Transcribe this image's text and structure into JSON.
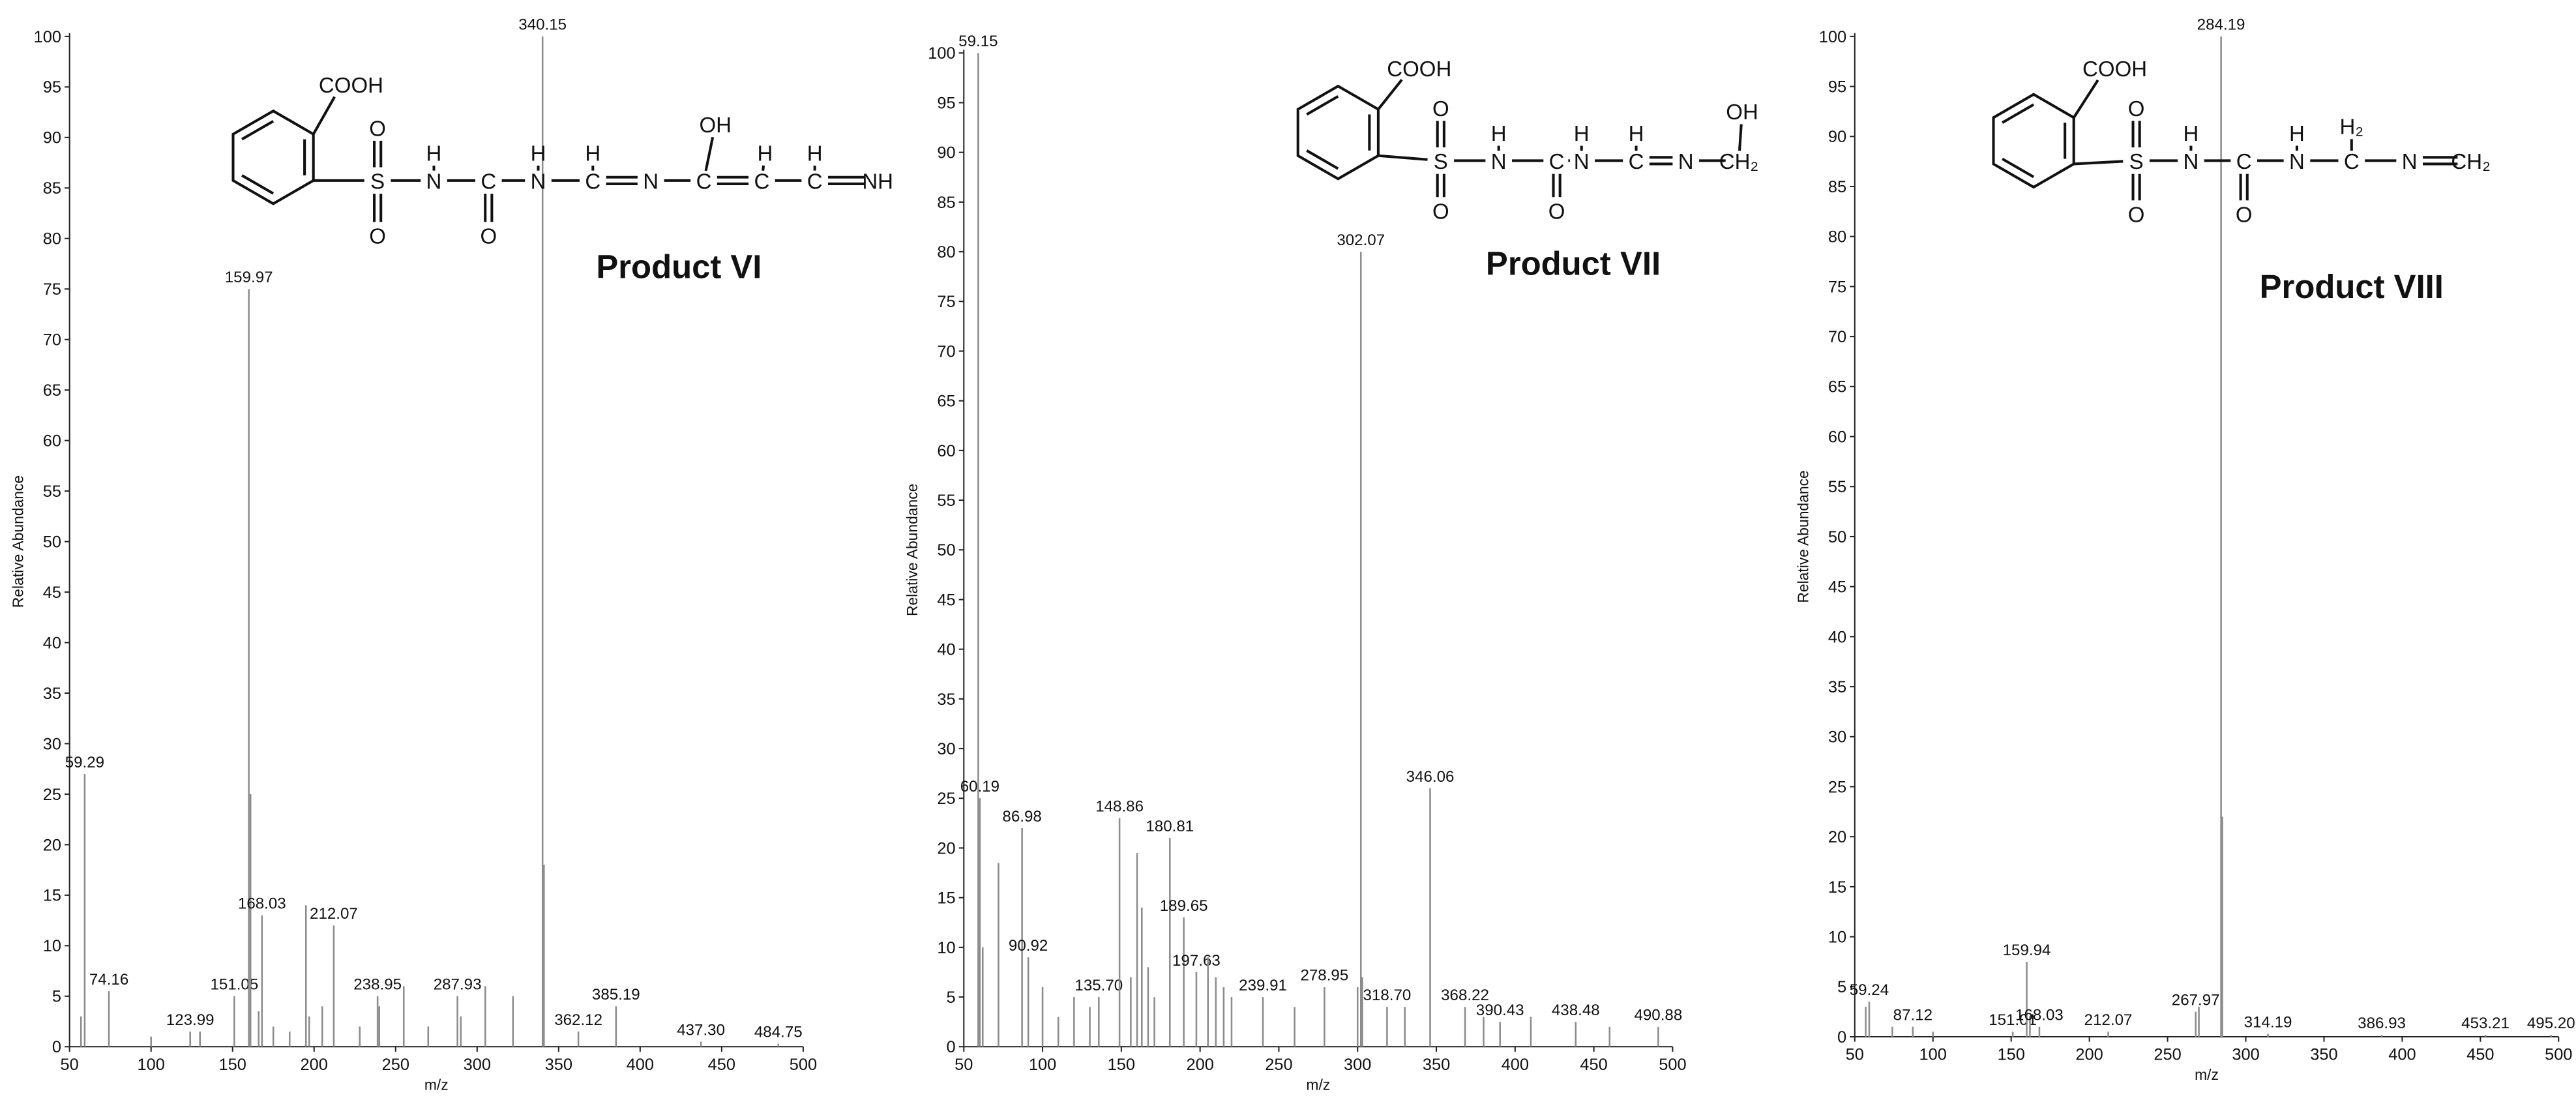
{
  "chart_data": [
    {
      "type": "bar",
      "product_label": "Product VI",
      "structure_labels": [
        "COOH",
        "S",
        "O",
        "O",
        "H",
        "N",
        "C",
        "O",
        "H",
        "N",
        "H",
        "C",
        "N",
        "OH",
        "C",
        "H",
        "C",
        "H",
        "C",
        "NH"
      ],
      "xlabel": "m/z",
      "ylabel": "Relative Abundance",
      "color": "#8c8c8c",
      "x": [
        57,
        59.29,
        74.16,
        100,
        123.99,
        130,
        151.05,
        159.97,
        161,
        166,
        168.03,
        175,
        185,
        195,
        197,
        205,
        212.07,
        228,
        238.95,
        240,
        255,
        270,
        287.93,
        290,
        305,
        322,
        340.15,
        341,
        362.12,
        385.19,
        437.3,
        484.75
      ],
      "values": [
        3,
        27,
        5.5,
        1,
        1.5,
        1.5,
        5,
        75,
        25,
        3.5,
        13,
        2,
        1.5,
        14,
        3,
        4,
        12,
        2,
        5,
        4,
        6,
        2,
        5,
        3,
        6,
        5,
        100,
        18,
        1.5,
        4,
        0.5,
        0.3
      ],
      "x_labels": [
        null,
        "59.29",
        "74.16",
        null,
        "123.99",
        null,
        "151.05",
        "159.97",
        null,
        null,
        "168.03",
        null,
        null,
        null,
        null,
        null,
        "212.07",
        null,
        "238.95",
        null,
        null,
        null,
        "287.93",
        null,
        null,
        null,
        "340.15",
        null,
        "362.12",
        "385.19",
        "437.30",
        "484.75"
      ],
      "xlim": [
        50,
        500
      ],
      "ylim": [
        0,
        100
      ],
      "xticks": [
        50,
        100,
        150,
        200,
        250,
        300,
        350,
        400,
        450,
        500
      ],
      "yticks": [
        0,
        5,
        10,
        15,
        20,
        25,
        30,
        35,
        40,
        45,
        50,
        55,
        60,
        65,
        70,
        75,
        80,
        85,
        90,
        95,
        100
      ]
    },
    {
      "type": "bar",
      "product_label": "Product VII",
      "structure_labels": [
        "COOH",
        "S",
        "O",
        "O",
        "H",
        "N",
        "C",
        "O",
        "H",
        "N",
        "H",
        "C",
        "N",
        "OH",
        "CH₂"
      ],
      "xlabel": "m/z",
      "ylabel": "Relative Abundance",
      "color": "#8c8c8c",
      "x": [
        59.15,
        60.19,
        62,
        72,
        86.98,
        90.92,
        100,
        110,
        120,
        130,
        135.7,
        148.86,
        156,
        160,
        163,
        167,
        171,
        180.81,
        189.65,
        197.63,
        205,
        210,
        215,
        220,
        239.91,
        260,
        278.95,
        300,
        302.07,
        303,
        318.7,
        330,
        346.06,
        368.22,
        380,
        390.43,
        410,
        438.48,
        460,
        490.88
      ],
      "values": [
        100,
        25,
        10,
        18.5,
        22,
        9,
        6,
        3,
        5,
        4,
        5,
        23,
        7,
        19.5,
        14,
        8,
        5,
        21,
        13,
        7.5,
        9,
        7,
        6,
        5,
        5,
        4,
        6,
        6,
        80,
        7,
        4,
        4,
        26,
        4,
        3,
        2.5,
        3,
        2.5,
        2,
        2
      ],
      "x_labels": [
        "59.15",
        "60.19",
        null,
        null,
        "86.98",
        "90.92",
        null,
        null,
        null,
        null,
        "135.70",
        "148.86",
        null,
        null,
        null,
        null,
        null,
        "180.81",
        "189.65",
        "197.63",
        null,
        null,
        null,
        null,
        "239.91",
        null,
        "278.95",
        null,
        "302.07",
        null,
        "318.70",
        null,
        "346.06",
        "368.22",
        null,
        "390.43",
        null,
        "438.48",
        null,
        "490.88"
      ],
      "xlim": [
        50,
        500
      ],
      "ylim": [
        0,
        100
      ],
      "xticks": [
        50,
        100,
        150,
        200,
        250,
        300,
        350,
        400,
        450,
        500
      ],
      "yticks": [
        0,
        5,
        10,
        15,
        20,
        25,
        30,
        35,
        40,
        45,
        50,
        55,
        60,
        65,
        70,
        75,
        80,
        85,
        90,
        95,
        100
      ]
    },
    {
      "type": "bar",
      "product_label": "Product VIII",
      "structure_labels": [
        "COOH",
        "S",
        "O",
        "O",
        "H",
        "N",
        "C",
        "O",
        "H",
        "N",
        "H₂",
        "C",
        "N",
        "CH₂"
      ],
      "xlabel": "m/z",
      "ylabel": "Relative Abundance",
      "color": "#8c8c8c",
      "x": [
        57,
        59.24,
        74,
        87.12,
        100,
        151.01,
        159.94,
        162,
        168.03,
        212.07,
        267.97,
        270,
        284.19,
        285,
        314.19,
        386.93,
        453.21,
        495.2
      ],
      "values": [
        3,
        3.5,
        1,
        1,
        0.5,
        0.5,
        7.5,
        2,
        1,
        0.5,
        2.5,
        3,
        100,
        22,
        0.3,
        0.2,
        0.2,
        0.2
      ],
      "x_labels": [
        null,
        "59.24",
        null,
        "87.12",
        null,
        "151.01",
        "159.94",
        null,
        "168.03",
        "212.07",
        "267.97",
        null,
        "284.19",
        null,
        "314.19",
        "386.93",
        "453.21",
        "495.20"
      ],
      "xlim": [
        50,
        500
      ],
      "ylim": [
        0,
        100
      ],
      "xticks": [
        50,
        100,
        150,
        200,
        250,
        300,
        350,
        400,
        450,
        500
      ],
      "yticks": [
        0,
        5,
        10,
        15,
        20,
        25,
        30,
        35,
        40,
        45,
        50,
        55,
        60,
        65,
        70,
        75,
        80,
        85,
        90,
        95,
        100
      ]
    }
  ]
}
